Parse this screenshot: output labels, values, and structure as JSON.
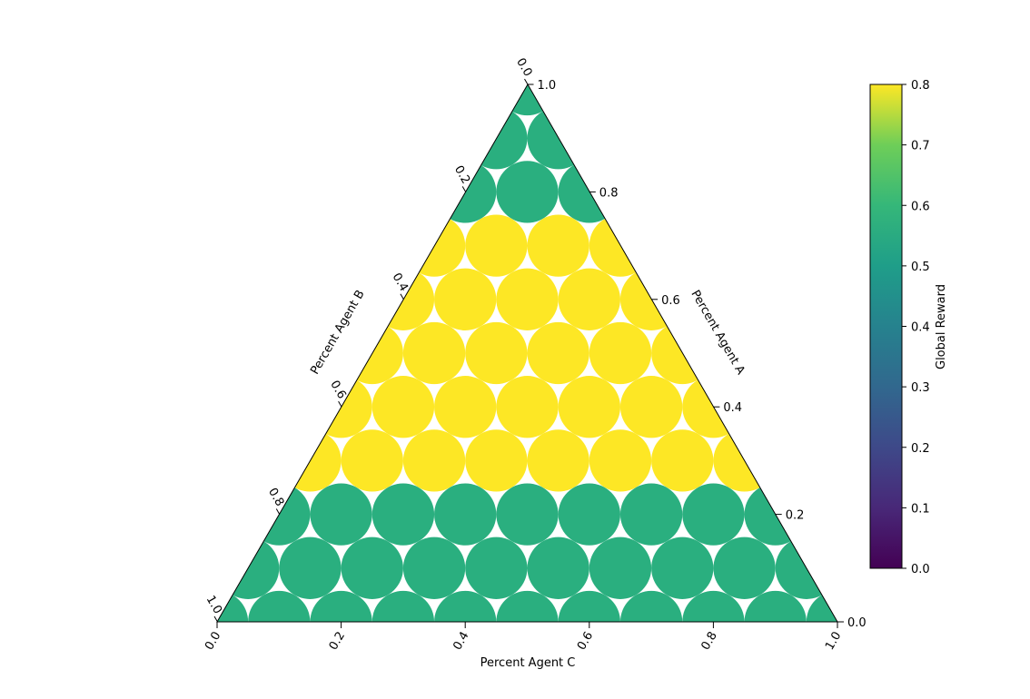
{
  "chart_data": {
    "type": "heatmap",
    "subtype": "ternary",
    "grid_spacing": 0.1,
    "axes": {
      "bottom": {
        "label": "Percent Agent C",
        "ticks": [
          "0.0",
          "0.2",
          "0.4",
          "0.6",
          "0.8",
          "1.0"
        ]
      },
      "right": {
        "label": "Percent Agent A",
        "ticks": [
          "0.0",
          "0.2",
          "0.4",
          "0.6",
          "0.8",
          "1.0"
        ]
      },
      "left": {
        "label": "Percent Agent B",
        "ticks": [
          "0.0",
          "0.2",
          "0.4",
          "0.6",
          "0.8",
          "1.0"
        ]
      }
    },
    "values_by_agent_a_level": [
      {
        "agent_a": 0.0,
        "global_reward": 0.5
      },
      {
        "agent_a": 0.1,
        "global_reward": 0.5
      },
      {
        "agent_a": 0.2,
        "global_reward": 0.5
      },
      {
        "agent_a": 0.3,
        "global_reward": 0.8
      },
      {
        "agent_a": 0.4,
        "global_reward": 0.8
      },
      {
        "agent_a": 0.5,
        "global_reward": 0.8
      },
      {
        "agent_a": 0.6,
        "global_reward": 0.8
      },
      {
        "agent_a": 0.7,
        "global_reward": 0.8
      },
      {
        "agent_a": 0.8,
        "global_reward": 0.5
      },
      {
        "agent_a": 0.9,
        "global_reward": 0.5
      },
      {
        "agent_a": 1.0,
        "global_reward": 0.5
      }
    ],
    "colorbar": {
      "label": "Global Reward",
      "range": [
        0.0,
        0.8
      ],
      "ticks": [
        "0.0",
        "0.1",
        "0.2",
        "0.3",
        "0.4",
        "0.5",
        "0.6",
        "0.7",
        "0.8"
      ],
      "colormap": "viridis"
    },
    "colors": {
      "reward_0_5": "#2aaf7f",
      "reward_0_8": "#fde725"
    }
  }
}
